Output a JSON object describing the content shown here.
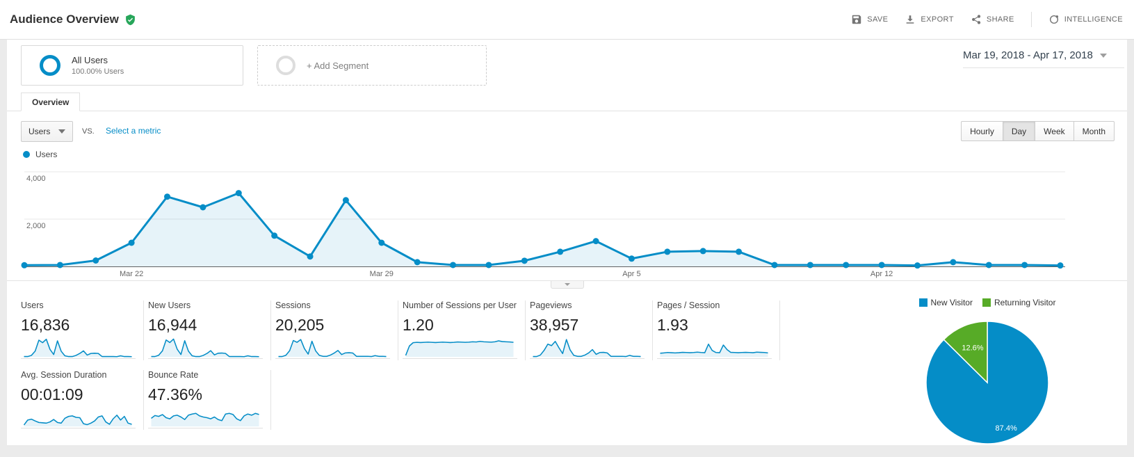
{
  "header": {
    "title": "Audience Overview",
    "actions": [
      {
        "label": "SAVE",
        "icon": "save-icon"
      },
      {
        "label": "EXPORT",
        "icon": "export-icon"
      },
      {
        "label": "SHARE",
        "icon": "share-icon"
      },
      {
        "label": "INTELLIGENCE",
        "icon": "intelligence-icon"
      }
    ]
  },
  "segments": {
    "all_users": {
      "title": "All Users",
      "subtitle": "100.00% Users"
    },
    "add_segment": {
      "label": "+ Add Segment"
    },
    "date_range": {
      "label": "Mar 19, 2018 - Apr 17, 2018"
    }
  },
  "tabs": {
    "overview": "Overview"
  },
  "controls": {
    "metric_dropdown": {
      "value": "Users"
    },
    "vs_label": "VS.",
    "select_metric_link": "Select a metric",
    "granularity": {
      "options": [
        "Hourly",
        "Day",
        "Week",
        "Month"
      ],
      "active": "Day"
    }
  },
  "chart_legend": {
    "label": "Users"
  },
  "chart_data": [
    {
      "type": "line",
      "name": "users-by-day",
      "x": [
        "Mar 19",
        "Mar 20",
        "Mar 21",
        "Mar 22",
        "Mar 23",
        "Mar 24",
        "Mar 25",
        "Mar 26",
        "Mar 27",
        "Mar 28",
        "Mar 29",
        "Mar 30",
        "Mar 31",
        "Apr 1",
        "Apr 2",
        "Apr 3",
        "Apr 4",
        "Apr 5",
        "Apr 6",
        "Apr 7",
        "Apr 8",
        "Apr 9",
        "Apr 10",
        "Apr 11",
        "Apr 12",
        "Apr 13",
        "Apr 14",
        "Apr 15",
        "Apr 16",
        "Apr 17"
      ],
      "series": [
        {
          "name": "Users",
          "color": "#058dc7",
          "values": [
            50,
            60,
            250,
            1000,
            2950,
            2500,
            3100,
            1300,
            420,
            2800,
            1000,
            180,
            60,
            60,
            240,
            620,
            1070,
            330,
            620,
            650,
            620,
            60,
            60,
            60,
            60,
            40,
            180,
            60,
            60,
            40
          ]
        }
      ],
      "ylim": [
        0,
        4000
      ],
      "yticks": [
        {
          "value": 2000,
          "label": "2,000"
        },
        {
          "value": 4000,
          "label": "4,000"
        }
      ],
      "xticks": [
        {
          "index": 3,
          "label": "Mar 22"
        },
        {
          "index": 10,
          "label": "Mar 29"
        },
        {
          "index": 17,
          "label": "Apr 5"
        },
        {
          "index": 24,
          "label": "Apr 12"
        }
      ],
      "grid": true,
      "legend_position": "top-left"
    },
    {
      "type": "pie",
      "name": "visitor-type",
      "slices": [
        {
          "label": "New Visitor",
          "value": 87.4,
          "display": "87.4%",
          "color": "#058dc7"
        },
        {
          "label": "Returning Visitor",
          "value": 12.6,
          "display": "12.6%",
          "color": "#57ab27"
        }
      ],
      "legend_position": "top"
    }
  ],
  "metrics": {
    "cards": [
      {
        "label": "Users",
        "value": "16,836",
        "spark": [
          2,
          2,
          8,
          32,
          92,
          78,
          97,
          41,
          13,
          88,
          31,
          6,
          2,
          2,
          8,
          19,
          33,
          10,
          19,
          20,
          19,
          2,
          2,
          2,
          2,
          1,
          6,
          2,
          2,
          1
        ]
      },
      {
        "label": "New Users",
        "value": "16,944",
        "spark": [
          2,
          2,
          9,
          33,
          93,
          79,
          98,
          42,
          13,
          89,
          32,
          6,
          2,
          2,
          8,
          19,
          34,
          11,
          20,
          21,
          19,
          2,
          2,
          2,
          2,
          1,
          6,
          2,
          2,
          1
        ]
      },
      {
        "label": "Sessions",
        "value": "20,205",
        "spark": [
          2,
          2,
          9,
          34,
          90,
          80,
          95,
          45,
          15,
          86,
          33,
          8,
          3,
          3,
          10,
          21,
          35,
          13,
          22,
          23,
          21,
          3,
          3,
          3,
          3,
          2,
          7,
          3,
          3,
          2
        ]
      },
      {
        "label": "Number of Sessions per User",
        "value": "1.20",
        "spark": [
          8,
          60,
          78,
          80,
          79,
          80,
          81,
          80,
          79,
          80,
          81,
          80,
          79,
          80,
          82,
          81,
          80,
          81,
          83,
          82,
          85,
          83,
          82,
          81,
          83,
          88,
          84,
          83,
          82,
          80
        ]
      },
      {
        "label": "Pageviews",
        "value": "38,957",
        "spark": [
          2,
          2,
          10,
          36,
          70,
          62,
          85,
          50,
          18,
          95,
          38,
          8,
          3,
          3,
          10,
          22,
          40,
          14,
          24,
          25,
          22,
          3,
          3,
          3,
          3,
          2,
          8,
          3,
          3,
          2
        ]
      },
      {
        "label": "Pages / Session",
        "value": "1.93",
        "spark": [
          20,
          22,
          24,
          23,
          22,
          23,
          25,
          24,
          23,
          24,
          26,
          24,
          23,
          70,
          35,
          24,
          23,
          65,
          40,
          25,
          24,
          23,
          24,
          25,
          24,
          23,
          26,
          25,
          24,
          22
        ]
      },
      {
        "label": "Avg. Session Duration",
        "value": "00:01:09",
        "spark": [
          8,
          35,
          40,
          30,
          22,
          20,
          18,
          25,
          38,
          22,
          18,
          45,
          55,
          58,
          50,
          48,
          15,
          10,
          18,
          30,
          52,
          58,
          25,
          12,
          42,
          62,
          35,
          55,
          18,
          12
        ]
      },
      {
        "label": "Bounce Rate",
        "value": "47.36%",
        "spark": [
          45,
          60,
          55,
          65,
          48,
          42,
          58,
          62,
          52,
          38,
          62,
          68,
          72,
          58,
          52,
          48,
          42,
          52,
          38,
          32,
          68,
          72,
          66,
          42,
          32,
          58,
          68,
          62,
          72,
          66
        ]
      }
    ]
  },
  "colors": {
    "accent_blue": "#058dc7",
    "green": "#57ab27",
    "fill_blue": "rgba(5,141,199,0.10)"
  }
}
